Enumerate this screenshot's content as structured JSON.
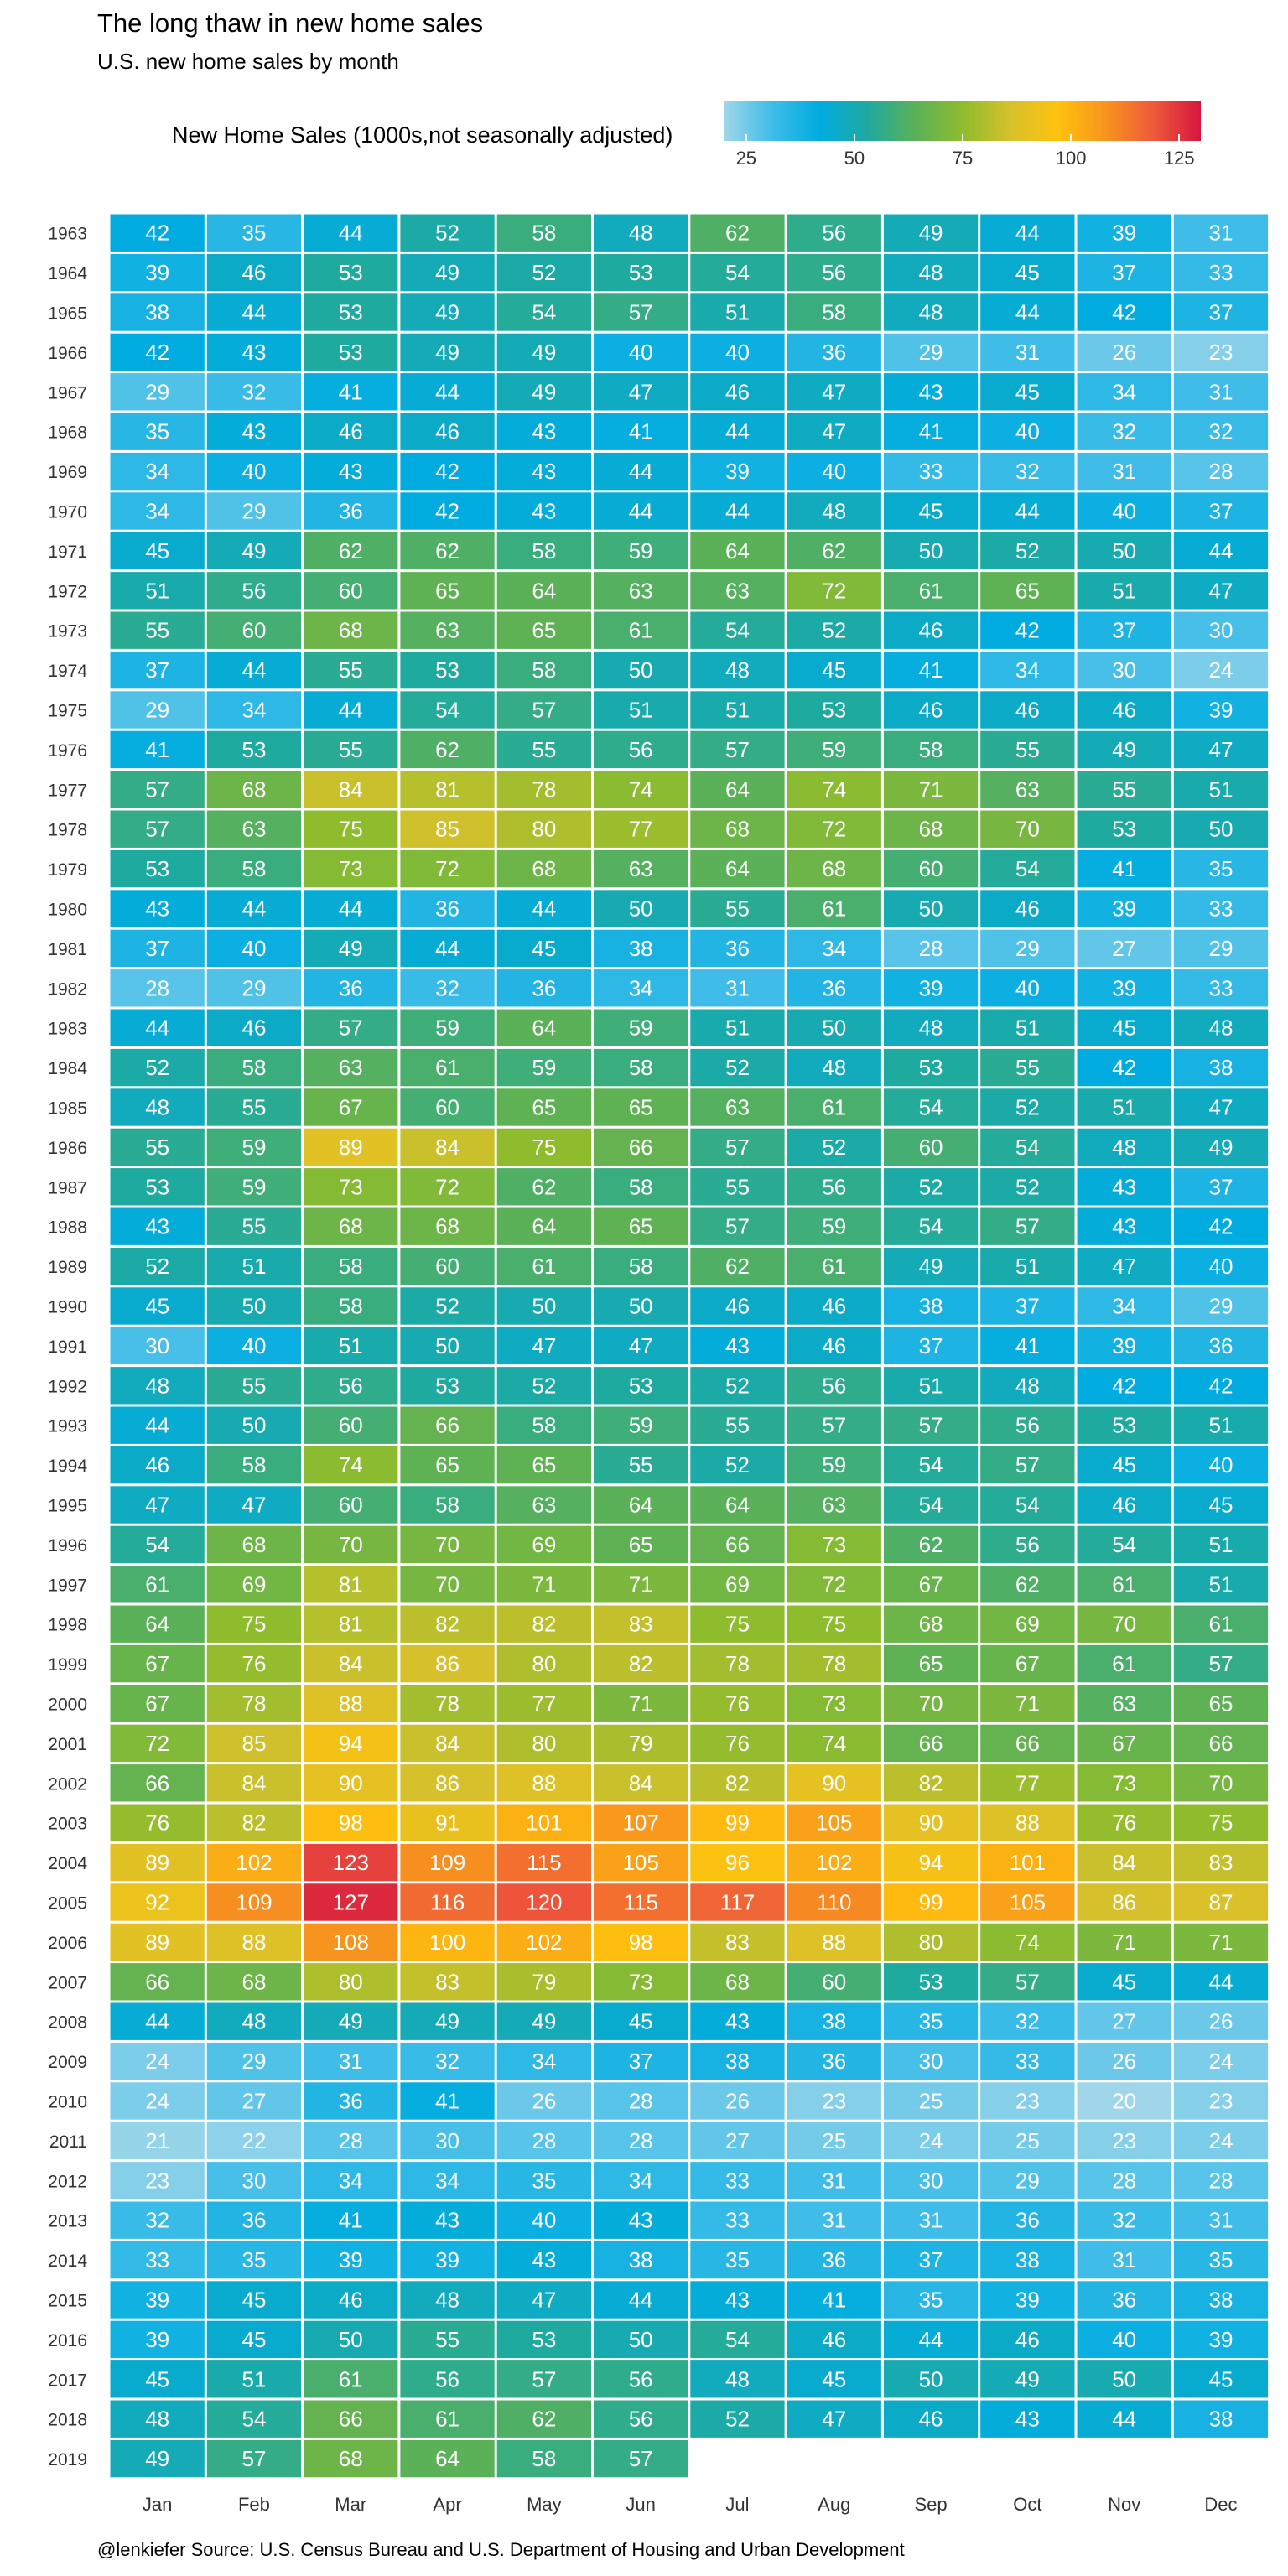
{
  "title": "The long thaw in new home sales",
  "subtitle": "U.S. new home sales by month",
  "caption": "@lenkiefer Source: U.S. Census Bureau and  U.S. Department of Housing and Urban Development",
  "colors": {
    "scale": [
      "#9fd6ea",
      "#3fbde8",
      "#00acdf",
      "#1faaa0",
      "#5ab158",
      "#8fbc2d",
      "#d6c12c",
      "#ffc20e",
      "#f7941d",
      "#ef5a3a",
      "#d6163f"
    ],
    "text": "#ffffff",
    "axis_text": "#333333"
  },
  "chart_data": {
    "type": "heatmap",
    "title": "The long thaw in new home sales",
    "subtitle": "U.S. new home sales by month",
    "legend": {
      "title": "New Home Sales (1000s,not seasonally adjusted)",
      "ticks": [
        25,
        50,
        75,
        100,
        125
      ],
      "range": [
        20,
        130
      ],
      "placement": "top"
    },
    "x_categories": [
      "Jan",
      "Feb",
      "Mar",
      "Apr",
      "May",
      "Jun",
      "Jul",
      "Aug",
      "Sep",
      "Oct",
      "Nov",
      "Dec"
    ],
    "rows": [
      {
        "year": "1963",
        "values": [
          42,
          35,
          44,
          52,
          58,
          48,
          62,
          56,
          49,
          44,
          39,
          31
        ]
      },
      {
        "year": "1964",
        "values": [
          39,
          46,
          53,
          49,
          52,
          53,
          54,
          56,
          48,
          45,
          37,
          33
        ]
      },
      {
        "year": "1965",
        "values": [
          38,
          44,
          53,
          49,
          54,
          57,
          51,
          58,
          48,
          44,
          42,
          37
        ]
      },
      {
        "year": "1966",
        "values": [
          42,
          43,
          53,
          49,
          49,
          40,
          40,
          36,
          29,
          31,
          26,
          23
        ]
      },
      {
        "year": "1967",
        "values": [
          29,
          32,
          41,
          44,
          49,
          47,
          46,
          47,
          43,
          45,
          34,
          31
        ]
      },
      {
        "year": "1968",
        "values": [
          35,
          43,
          46,
          46,
          43,
          41,
          44,
          47,
          41,
          40,
          32,
          32
        ]
      },
      {
        "year": "1969",
        "values": [
          34,
          40,
          43,
          42,
          43,
          44,
          39,
          40,
          33,
          32,
          31,
          28
        ]
      },
      {
        "year": "1970",
        "values": [
          34,
          29,
          36,
          42,
          43,
          44,
          44,
          48,
          45,
          44,
          40,
          37
        ]
      },
      {
        "year": "1971",
        "values": [
          45,
          49,
          62,
          62,
          58,
          59,
          64,
          62,
          50,
          52,
          50,
          44
        ]
      },
      {
        "year": "1972",
        "values": [
          51,
          56,
          60,
          65,
          64,
          63,
          63,
          72,
          61,
          65,
          51,
          47
        ]
      },
      {
        "year": "1973",
        "values": [
          55,
          60,
          68,
          63,
          65,
          61,
          54,
          52,
          46,
          42,
          37,
          30
        ]
      },
      {
        "year": "1974",
        "values": [
          37,
          44,
          55,
          53,
          58,
          50,
          48,
          45,
          41,
          34,
          30,
          24
        ]
      },
      {
        "year": "1975",
        "values": [
          29,
          34,
          44,
          54,
          57,
          51,
          51,
          53,
          46,
          46,
          46,
          39
        ]
      },
      {
        "year": "1976",
        "values": [
          41,
          53,
          55,
          62,
          55,
          56,
          57,
          59,
          58,
          55,
          49,
          47
        ]
      },
      {
        "year": "1977",
        "values": [
          57,
          68,
          84,
          81,
          78,
          74,
          64,
          74,
          71,
          63,
          55,
          51
        ]
      },
      {
        "year": "1978",
        "values": [
          57,
          63,
          75,
          85,
          80,
          77,
          68,
          72,
          68,
          70,
          53,
          50
        ]
      },
      {
        "year": "1979",
        "values": [
          53,
          58,
          73,
          72,
          68,
          63,
          64,
          68,
          60,
          54,
          41,
          35
        ]
      },
      {
        "year": "1980",
        "values": [
          43,
          44,
          44,
          36,
          44,
          50,
          55,
          61,
          50,
          46,
          39,
          33
        ]
      },
      {
        "year": "1981",
        "values": [
          37,
          40,
          49,
          44,
          45,
          38,
          36,
          34,
          28,
          29,
          27,
          29
        ]
      },
      {
        "year": "1982",
        "values": [
          28,
          29,
          36,
          32,
          36,
          34,
          31,
          36,
          39,
          40,
          39,
          33
        ]
      },
      {
        "year": "1983",
        "values": [
          44,
          46,
          57,
          59,
          64,
          59,
          51,
          50,
          48,
          51,
          45,
          48
        ]
      },
      {
        "year": "1984",
        "values": [
          52,
          58,
          63,
          61,
          59,
          58,
          52,
          48,
          53,
          55,
          42,
          38
        ]
      },
      {
        "year": "1985",
        "values": [
          48,
          55,
          67,
          60,
          65,
          65,
          63,
          61,
          54,
          52,
          51,
          47
        ]
      },
      {
        "year": "1986",
        "values": [
          55,
          59,
          89,
          84,
          75,
          66,
          57,
          52,
          60,
          54,
          48,
          49
        ]
      },
      {
        "year": "1987",
        "values": [
          53,
          59,
          73,
          72,
          62,
          58,
          55,
          56,
          52,
          52,
          43,
          37
        ]
      },
      {
        "year": "1988",
        "values": [
          43,
          55,
          68,
          68,
          64,
          65,
          57,
          59,
          54,
          57,
          43,
          42
        ]
      },
      {
        "year": "1989",
        "values": [
          52,
          51,
          58,
          60,
          61,
          58,
          62,
          61,
          49,
          51,
          47,
          40
        ]
      },
      {
        "year": "1990",
        "values": [
          45,
          50,
          58,
          52,
          50,
          50,
          46,
          46,
          38,
          37,
          34,
          29
        ]
      },
      {
        "year": "1991",
        "values": [
          30,
          40,
          51,
          50,
          47,
          47,
          43,
          46,
          37,
          41,
          39,
          36
        ]
      },
      {
        "year": "1992",
        "values": [
          48,
          55,
          56,
          53,
          52,
          53,
          52,
          56,
          51,
          48,
          42,
          42
        ]
      },
      {
        "year": "1993",
        "values": [
          44,
          50,
          60,
          66,
          58,
          59,
          55,
          57,
          57,
          56,
          53,
          51
        ]
      },
      {
        "year": "1994",
        "values": [
          46,
          58,
          74,
          65,
          65,
          55,
          52,
          59,
          54,
          57,
          45,
          40
        ]
      },
      {
        "year": "1995",
        "values": [
          47,
          47,
          60,
          58,
          63,
          64,
          64,
          63,
          54,
          54,
          46,
          45
        ]
      },
      {
        "year": "1996",
        "values": [
          54,
          68,
          70,
          70,
          69,
          65,
          66,
          73,
          62,
          56,
          54,
          51
        ]
      },
      {
        "year": "1997",
        "values": [
          61,
          69,
          81,
          70,
          71,
          71,
          69,
          72,
          67,
          62,
          61,
          51
        ]
      },
      {
        "year": "1998",
        "values": [
          64,
          75,
          81,
          82,
          82,
          83,
          75,
          75,
          68,
          69,
          70,
          61
        ]
      },
      {
        "year": "1999",
        "values": [
          67,
          76,
          84,
          86,
          80,
          82,
          78,
          78,
          65,
          67,
          61,
          57
        ]
      },
      {
        "year": "2000",
        "values": [
          67,
          78,
          88,
          78,
          77,
          71,
          76,
          73,
          70,
          71,
          63,
          65
        ]
      },
      {
        "year": "2001",
        "values": [
          72,
          85,
          94,
          84,
          80,
          79,
          76,
          74,
          66,
          66,
          67,
          66
        ]
      },
      {
        "year": "2002",
        "values": [
          66,
          84,
          90,
          86,
          88,
          84,
          82,
          90,
          82,
          77,
          73,
          70
        ]
      },
      {
        "year": "2003",
        "values": [
          76,
          82,
          98,
          91,
          101,
          107,
          99,
          105,
          90,
          88,
          76,
          75
        ]
      },
      {
        "year": "2004",
        "values": [
          89,
          102,
          123,
          109,
          115,
          105,
          96,
          102,
          94,
          101,
          84,
          83
        ]
      },
      {
        "year": "2005",
        "values": [
          92,
          109,
          127,
          116,
          120,
          115,
          117,
          110,
          99,
          105,
          86,
          87
        ]
      },
      {
        "year": "2006",
        "values": [
          89,
          88,
          108,
          100,
          102,
          98,
          83,
          88,
          80,
          74,
          71,
          71
        ]
      },
      {
        "year": "2007",
        "values": [
          66,
          68,
          80,
          83,
          79,
          73,
          68,
          60,
          53,
          57,
          45,
          44
        ]
      },
      {
        "year": "2008",
        "values": [
          44,
          48,
          49,
          49,
          49,
          45,
          43,
          38,
          35,
          32,
          27,
          26
        ]
      },
      {
        "year": "2009",
        "values": [
          24,
          29,
          31,
          32,
          34,
          37,
          38,
          36,
          30,
          33,
          26,
          24
        ]
      },
      {
        "year": "2010",
        "values": [
          24,
          27,
          36,
          41,
          26,
          28,
          26,
          23,
          25,
          23,
          20,
          23
        ]
      },
      {
        "year": "2011",
        "values": [
          21,
          22,
          28,
          30,
          28,
          28,
          27,
          25,
          24,
          25,
          23,
          24
        ]
      },
      {
        "year": "2012",
        "values": [
          23,
          30,
          34,
          34,
          35,
          34,
          33,
          31,
          30,
          29,
          28,
          28
        ]
      },
      {
        "year": "2013",
        "values": [
          32,
          36,
          41,
          43,
          40,
          43,
          33,
          31,
          31,
          36,
          32,
          31
        ]
      },
      {
        "year": "2014",
        "values": [
          33,
          35,
          39,
          39,
          43,
          38,
          35,
          36,
          37,
          38,
          31,
          35
        ]
      },
      {
        "year": "2015",
        "values": [
          39,
          45,
          46,
          48,
          47,
          44,
          43,
          41,
          35,
          39,
          36,
          38
        ]
      },
      {
        "year": "2016",
        "values": [
          39,
          45,
          50,
          55,
          53,
          50,
          54,
          46,
          44,
          46,
          40,
          39
        ]
      },
      {
        "year": "2017",
        "values": [
          45,
          51,
          61,
          56,
          57,
          56,
          48,
          45,
          50,
          49,
          50,
          45
        ]
      },
      {
        "year": "2018",
        "values": [
          48,
          54,
          66,
          61,
          62,
          56,
          52,
          47,
          46,
          43,
          44,
          38
        ]
      },
      {
        "year": "2019",
        "values": [
          49,
          57,
          68,
          64,
          58,
          57
        ]
      }
    ]
  }
}
